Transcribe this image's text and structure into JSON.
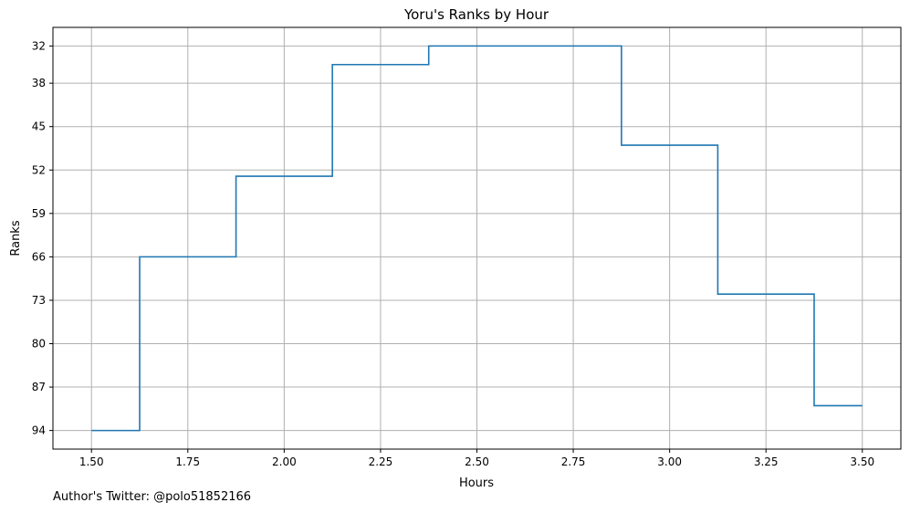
{
  "chart_data": {
    "type": "line",
    "step": "mid",
    "title": "Yoru's Ranks by Hour",
    "xlabel": "Hours",
    "ylabel": "Ranks",
    "y_inverted": true,
    "grid": true,
    "x": [
      1.5,
      1.75,
      2.0,
      2.25,
      2.5,
      2.75,
      3.0,
      3.25,
      3.5
    ],
    "series": [
      {
        "values": [
          94,
          66,
          53,
          35,
          32,
          32,
          48,
          72,
          90
        ],
        "color": "#1f77b4"
      }
    ],
    "xlim": [
      1.4,
      3.6
    ],
    "ylim": [
      97,
      29
    ],
    "xticks": [
      "1.50",
      "1.75",
      "2.00",
      "2.25",
      "2.50",
      "2.75",
      "3.00",
      "3.25",
      "3.50"
    ],
    "xtick_values": [
      1.5,
      1.75,
      2.0,
      2.25,
      2.5,
      2.75,
      3.0,
      3.25,
      3.5
    ],
    "yticks": [
      "32",
      "38",
      "45",
      "52",
      "59",
      "66",
      "73",
      "80",
      "87",
      "94"
    ],
    "ytick_values": [
      32,
      38,
      45,
      52,
      59,
      66,
      73,
      80,
      87,
      94
    ]
  },
  "footer": {
    "text": "Author's Twitter: @polo51852166"
  }
}
